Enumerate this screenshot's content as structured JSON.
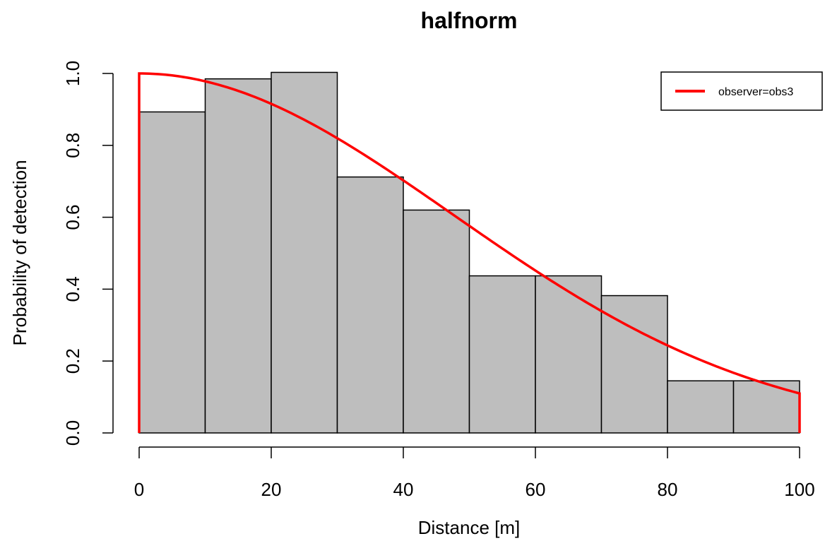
{
  "chart_data": {
    "type": "bar",
    "title": "halfnorm",
    "xlabel": "Distance [m]",
    "ylabel": "Probability of detection",
    "xlim": [
      0,
      100
    ],
    "ylim": [
      0,
      1
    ],
    "x_ticks": [
      "0",
      "20",
      "40",
      "60",
      "80",
      "100"
    ],
    "y_ticks": [
      "0.0",
      "0.2",
      "0.4",
      "0.6",
      "0.8",
      "1.0"
    ],
    "bins": [
      {
        "from": 0,
        "to": 10,
        "value": 0.893
      },
      {
        "from": 10,
        "to": 20,
        "value": 0.985
      },
      {
        "from": 20,
        "to": 30,
        "value": 1.003
      },
      {
        "from": 30,
        "to": 40,
        "value": 0.712
      },
      {
        "from": 40,
        "to": 50,
        "value": 0.62
      },
      {
        "from": 50,
        "to": 60,
        "value": 0.437
      },
      {
        "from": 60,
        "to": 70,
        "value": 0.437
      },
      {
        "from": 70,
        "to": 80,
        "value": 0.382
      },
      {
        "from": 80,
        "to": 90,
        "value": 0.145
      },
      {
        "from": 90,
        "to": 100,
        "value": 0.145
      }
    ],
    "bar_color": "#bebebe",
    "series": [
      {
        "name": "observer=obs3",
        "color": "#ff0000",
        "model": "halfnorm",
        "x": [
          0,
          10,
          20,
          30,
          40,
          50,
          60,
          70,
          80,
          90,
          100
        ],
        "y": [
          1.0,
          0.98,
          0.918,
          0.824,
          0.707,
          0.58,
          0.455,
          0.342,
          0.246,
          0.17,
          0.11
        ]
      }
    ],
    "legend": {
      "position": "top-right",
      "entries": [
        "observer=obs3"
      ]
    },
    "grid": false
  }
}
